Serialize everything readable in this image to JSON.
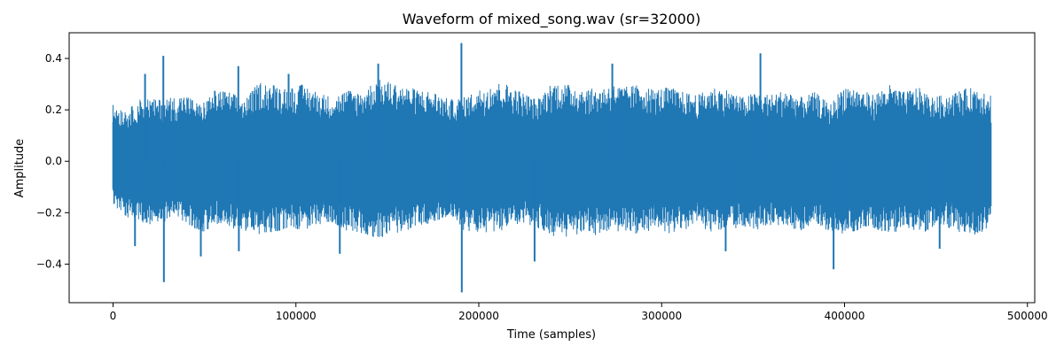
{
  "chart_data": {
    "type": "line",
    "title": "Waveform of mixed_song.wav (sr=32000)",
    "xlabel": "Time (samples)",
    "ylabel": "Amplitude",
    "xlim": [
      -24000,
      504000
    ],
    "ylim": [
      -0.55,
      0.5
    ],
    "x_ticks": [
      0,
      100000,
      200000,
      300000,
      400000,
      500000
    ],
    "x_tick_labels": [
      "0",
      "100000",
      "200000",
      "300000",
      "400000",
      "500000"
    ],
    "y_ticks": [
      -0.4,
      -0.2,
      0.0,
      0.2,
      0.4
    ],
    "y_tick_labels": [
      "−0.4",
      "−0.2",
      "0.0",
      "0.2",
      "0.4"
    ],
    "grid": false,
    "line_color": "#1f77b4",
    "series": [
      {
        "x_range": [
          0,
          480000
        ],
        "envelope_x": [
          0,
          8000,
          16000,
          24000,
          32000,
          40000,
          48000,
          56000,
          64000,
          72000,
          80000,
          88000,
          96000,
          104000,
          112000,
          120000,
          128000,
          136000,
          144000,
          152000,
          160000,
          168000,
          176000,
          184000,
          192000,
          200000,
          208000,
          216000,
          224000,
          232000,
          240000,
          248000,
          256000,
          264000,
          272000,
          280000,
          288000,
          296000,
          304000,
          312000,
          320000,
          328000,
          336000,
          344000,
          352000,
          360000,
          368000,
          376000,
          384000,
          392000,
          400000,
          408000,
          416000,
          424000,
          432000,
          440000,
          448000,
          456000,
          464000,
          472000,
          480000
        ],
        "envelope_max": [
          0.22,
          0.2,
          0.25,
          0.24,
          0.25,
          0.26,
          0.22,
          0.28,
          0.27,
          0.24,
          0.31,
          0.3,
          0.29,
          0.3,
          0.27,
          0.25,
          0.28,
          0.27,
          0.32,
          0.31,
          0.29,
          0.28,
          0.27,
          0.24,
          0.25,
          0.28,
          0.31,
          0.3,
          0.27,
          0.24,
          0.31,
          0.3,
          0.29,
          0.28,
          0.3,
          0.29,
          0.3,
          0.28,
          0.29,
          0.27,
          0.26,
          0.29,
          0.28,
          0.25,
          0.27,
          0.26,
          0.28,
          0.25,
          0.27,
          0.22,
          0.3,
          0.28,
          0.26,
          0.3,
          0.27,
          0.29,
          0.25,
          0.26,
          0.28,
          0.29,
          0.27
        ],
        "envelope_min": [
          -0.17,
          -0.22,
          -0.24,
          -0.25,
          -0.22,
          -0.24,
          -0.28,
          -0.25,
          -0.26,
          -0.27,
          -0.29,
          -0.28,
          -0.26,
          -0.27,
          -0.25,
          -0.24,
          -0.27,
          -0.28,
          -0.3,
          -0.29,
          -0.27,
          -0.25,
          -0.24,
          -0.22,
          -0.27,
          -0.28,
          -0.28,
          -0.26,
          -0.25,
          -0.26,
          -0.29,
          -0.3,
          -0.28,
          -0.29,
          -0.28,
          -0.27,
          -0.29,
          -0.26,
          -0.28,
          -0.27,
          -0.25,
          -0.28,
          -0.26,
          -0.26,
          -0.27,
          -0.25,
          -0.26,
          -0.27,
          -0.24,
          -0.29,
          -0.28,
          -0.27,
          -0.26,
          -0.29,
          -0.26,
          -0.28,
          -0.27,
          -0.26,
          -0.28,
          -0.29,
          -0.25
        ],
        "peaks": [
          {
            "x": 17500,
            "y": 0.34
          },
          {
            "x": 27500,
            "y": 0.41
          },
          {
            "x": 27800,
            "y": -0.47
          },
          {
            "x": 48000,
            "y": -0.37
          },
          {
            "x": 68500,
            "y": 0.37
          },
          {
            "x": 68800,
            "y": -0.35
          },
          {
            "x": 124000,
            "y": -0.36
          },
          {
            "x": 145000,
            "y": 0.38
          },
          {
            "x": 190500,
            "y": 0.46
          },
          {
            "x": 190700,
            "y": -0.51
          },
          {
            "x": 230500,
            "y": -0.39
          },
          {
            "x": 273000,
            "y": 0.38
          },
          {
            "x": 354000,
            "y": 0.42
          },
          {
            "x": 394000,
            "y": -0.42
          },
          {
            "x": 12000,
            "y": -0.33
          },
          {
            "x": 96000,
            "y": 0.34
          },
          {
            "x": 335000,
            "y": -0.35
          },
          {
            "x": 452000,
            "y": -0.34
          }
        ]
      }
    ]
  }
}
